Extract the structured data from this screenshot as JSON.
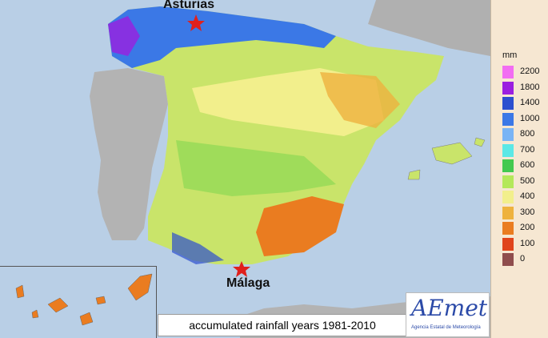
{
  "map": {
    "title_caption": "accumulated rainfall years 1981-2010",
    "places": [
      {
        "name": "Asturias",
        "marker": "red-star"
      },
      {
        "name": "Málaga",
        "marker": "red-star"
      }
    ],
    "legend": {
      "unit": "mm",
      "classes": [
        {
          "value": "2200",
          "color": "#f26df2"
        },
        {
          "value": "1800",
          "color": "#9b1fe0"
        },
        {
          "value": "1400",
          "color": "#2c4fcf"
        },
        {
          "value": "1000",
          "color": "#3b78e6"
        },
        {
          "value": "800",
          "color": "#79b4f5"
        },
        {
          "value": "700",
          "color": "#5ce8e6"
        },
        {
          "value": "600",
          "color": "#43c94f"
        },
        {
          "value": "500",
          "color": "#b4e85a"
        },
        {
          "value": "400",
          "color": "#f2ef8c"
        },
        {
          "value": "300",
          "color": "#eeb23e"
        },
        {
          "value": "200",
          "color": "#ea7c20"
        },
        {
          "value": "100",
          "color": "#e0441c"
        },
        {
          "value": "0",
          "color": "#8f4d4d"
        }
      ]
    },
    "logo": {
      "name": "AEmet",
      "subtitle": "Agencia Estatal de Meteorología"
    }
  }
}
